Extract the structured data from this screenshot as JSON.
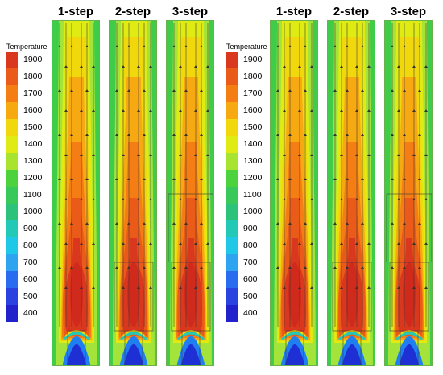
{
  "legend": {
    "title": "Temperature",
    "ticks": [
      "1900",
      "1800",
      "1700",
      "1600",
      "1500",
      "1400",
      "1300",
      "1200",
      "1100",
      "1000",
      "900",
      "800",
      "700",
      "600",
      "500",
      "400"
    ],
    "colors": [
      "#d9381e",
      "#ea5a18",
      "#f47d14",
      "#f7a912",
      "#f1d80d",
      "#dfeb12",
      "#a8e330",
      "#4bd23c",
      "#39c85a",
      "#2cc27a",
      "#22c9b6",
      "#1fc8e6",
      "#2ea3f0",
      "#2a6cf0",
      "#2a43e0",
      "#2222cc"
    ]
  },
  "left": {
    "columns": [
      {
        "label": "1-step",
        "variant": "1"
      },
      {
        "label": "2-step",
        "variant": "2"
      },
      {
        "label": "3-step",
        "variant": "3"
      }
    ]
  },
  "right": {
    "columns": [
      {
        "label": "1-step",
        "variant": "1"
      },
      {
        "label": "2-step",
        "variant": "2"
      },
      {
        "label": "3-step",
        "variant": "3"
      }
    ]
  }
}
